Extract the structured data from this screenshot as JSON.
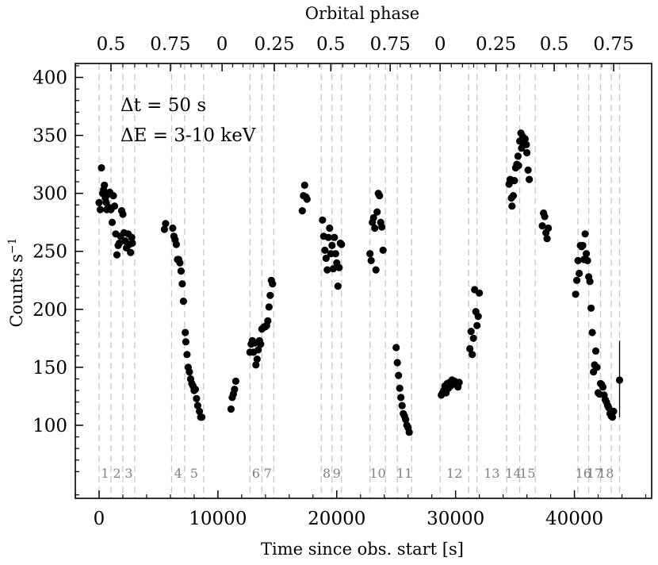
{
  "chart_data": {
    "type": "scatter",
    "title": "",
    "xlabel": "Time since obs. start [s]",
    "ylabel": "Counts s",
    "ylabel_sup": "−1",
    "top_axis_label": "Orbital phase",
    "xlim": [
      -2000,
      46500
    ],
    "ylim": [
      37,
      412
    ],
    "x_ticks": [
      0,
      10000,
      20000,
      30000,
      40000
    ],
    "x_tick_labels": [
      "0",
      "10000",
      "20000",
      "30000",
      "40000"
    ],
    "y_ticks": [
      100,
      150,
      200,
      250,
      300,
      350,
      400
    ],
    "y_tick_labels": [
      "100",
      "150",
      "200",
      "250",
      "300",
      "350",
      "400"
    ],
    "phase_ticks": [
      {
        "x": 1000,
        "label": "0.5"
      },
      {
        "x": 6000,
        "label": "0.75"
      },
      {
        "x": 10350,
        "label": "0"
      },
      {
        "x": 14750,
        "label": "0.25"
      },
      {
        "x": 19500,
        "label": "0.5"
      },
      {
        "x": 24500,
        "label": "0.75"
      },
      {
        "x": 28700,
        "label": "0"
      },
      {
        "x": 33400,
        "label": "0.25"
      },
      {
        "x": 38300,
        "label": "0.5"
      },
      {
        "x": 43300,
        "label": "0.75"
      }
    ],
    "segment_boundaries": [
      0,
      1000,
      2000,
      3000,
      6100,
      7200,
      8800,
      12700,
      13700,
      14700,
      18700,
      19600,
      20400,
      22800,
      24100,
      25100,
      26300,
      28700,
      31100,
      31800,
      34300,
      35400,
      36700,
      40300,
      41200,
      42200,
      43100,
      43800
    ],
    "segment_labels": [
      {
        "x": 500,
        "label": "1"
      },
      {
        "x": 1500,
        "label": "2"
      },
      {
        "x": 2500,
        "label": "3"
      },
      {
        "x": 6650,
        "label": "4"
      },
      {
        "x": 8000,
        "label": "5"
      },
      {
        "x": 13200,
        "label": "6"
      },
      {
        "x": 14200,
        "label": "7"
      },
      {
        "x": 19150,
        "label": "8"
      },
      {
        "x": 20000,
        "label": "9"
      },
      {
        "x": 23450,
        "label": "10"
      },
      {
        "x": 25700,
        "label": "11"
      },
      {
        "x": 29900,
        "label": "12"
      },
      {
        "x": 33050,
        "label": "13"
      },
      {
        "x": 34850,
        "label": "14"
      },
      {
        "x": 36050,
        "label": "15"
      },
      {
        "x": 40750,
        "label": "16"
      },
      {
        "x": 41700,
        "label": "17"
      },
      {
        "x": 42650,
        "label": "18"
      }
    ],
    "annotations": [
      "Δt = 50 s",
      "ΔE = 3-10 keV"
    ],
    "error_bar": {
      "x": 43800,
      "y": 139,
      "ylow": 107,
      "yhigh": 173
    },
    "points": [
      [
        0,
        292
      ],
      [
        100,
        286
      ],
      [
        200,
        322
      ],
      [
        300,
        300
      ],
      [
        380,
        303
      ],
      [
        450,
        307
      ],
      [
        520,
        296
      ],
      [
        600,
        292
      ],
      [
        650,
        286
      ],
      [
        720,
        299
      ],
      [
        800,
        288
      ],
      [
        900,
        301
      ],
      [
        1000,
        286
      ],
      [
        1100,
        275
      ],
      [
        1200,
        298
      ],
      [
        1300,
        289
      ],
      [
        1400,
        265
      ],
      [
        1500,
        247
      ],
      [
        1600,
        255
      ],
      [
        1700,
        257
      ],
      [
        1800,
        263
      ],
      [
        1900,
        285
      ],
      [
        2000,
        282
      ],
      [
        2100,
        266
      ],
      [
        2200,
        259
      ],
      [
        2300,
        253
      ],
      [
        2450,
        265
      ],
      [
        2550,
        256
      ],
      [
        2650,
        249
      ],
      [
        2750,
        262
      ],
      [
        2800,
        257
      ],
      [
        5500,
        269
      ],
      [
        5600,
        274
      ],
      [
        6200,
        270
      ],
      [
        6300,
        263
      ],
      [
        6400,
        260
      ],
      [
        6500,
        256
      ],
      [
        6600,
        243
      ],
      [
        6700,
        243
      ],
      [
        6800,
        240
      ],
      [
        6900,
        233
      ],
      [
        7000,
        222
      ],
      [
        7100,
        207
      ],
      [
        7250,
        180
      ],
      [
        7300,
        172
      ],
      [
        7400,
        161
      ],
      [
        7500,
        150
      ],
      [
        7600,
        146
      ],
      [
        7700,
        140
      ],
      [
        7800,
        136
      ],
      [
        7900,
        134
      ],
      [
        8000,
        130
      ],
      [
        8100,
        131
      ],
      [
        8200,
        123
      ],
      [
        8300,
        117
      ],
      [
        8450,
        112
      ],
      [
        8550,
        107
      ],
      [
        8650,
        107
      ],
      [
        11100,
        114
      ],
      [
        11200,
        124
      ],
      [
        11300,
        127
      ],
      [
        11400,
        131
      ],
      [
        11500,
        138
      ],
      [
        12700,
        163
      ],
      [
        12800,
        170
      ],
      [
        12900,
        173
      ],
      [
        13000,
        163
      ],
      [
        13100,
        171
      ],
      [
        13200,
        152
      ],
      [
        13300,
        157
      ],
      [
        13400,
        165
      ],
      [
        13500,
        173
      ],
      [
        13600,
        170
      ],
      [
        13700,
        183
      ],
      [
        13800,
        184
      ],
      [
        13900,
        185
      ],
      [
        14000,
        185
      ],
      [
        14100,
        186
      ],
      [
        14200,
        190
      ],
      [
        14300,
        202
      ],
      [
        14400,
        212
      ],
      [
        14500,
        225
      ],
      [
        14600,
        222
      ],
      [
        17100,
        285
      ],
      [
        17200,
        298
      ],
      [
        17300,
        307
      ],
      [
        17400,
        297
      ],
      [
        17500,
        295
      ],
      [
        18800,
        277
      ],
      [
        18900,
        263
      ],
      [
        19000,
        251
      ],
      [
        19100,
        244
      ],
      [
        19200,
        234
      ],
      [
        19300,
        262
      ],
      [
        19400,
        270
      ],
      [
        19500,
        248
      ],
      [
        19600,
        255
      ],
      [
        19700,
        235
      ],
      [
        19800,
        262
      ],
      [
        19900,
        248
      ],
      [
        20000,
        240
      ],
      [
        20100,
        220
      ],
      [
        20200,
        236
      ],
      [
        20300,
        257
      ],
      [
        20400,
        256
      ],
      [
        22800,
        248
      ],
      [
        22900,
        242
      ],
      [
        23000,
        275
      ],
      [
        23100,
        279
      ],
      [
        23200,
        270
      ],
      [
        23300,
        234
      ],
      [
        23400,
        284
      ],
      [
        23500,
        300
      ],
      [
        23600,
        298
      ],
      [
        23700,
        275
      ],
      [
        23800,
        271
      ],
      [
        23900,
        251
      ],
      [
        25000,
        167
      ],
      [
        25100,
        154
      ],
      [
        25200,
        143
      ],
      [
        25300,
        132
      ],
      [
        25400,
        124
      ],
      [
        25500,
        117
      ],
      [
        25600,
        110
      ],
      [
        25700,
        108
      ],
      [
        25800,
        105
      ],
      [
        25900,
        100
      ],
      [
        26000,
        98
      ],
      [
        26100,
        94
      ],
      [
        28800,
        126
      ],
      [
        28900,
        128
      ],
      [
        29000,
        130
      ],
      [
        29100,
        134
      ],
      [
        29200,
        128
      ],
      [
        29300,
        136
      ],
      [
        29400,
        132
      ],
      [
        29500,
        137
      ],
      [
        29600,
        134
      ],
      [
        29700,
        139
      ],
      [
        29800,
        136
      ],
      [
        29900,
        138
      ],
      [
        30000,
        137
      ],
      [
        30100,
        137
      ],
      [
        30200,
        133
      ],
      [
        30300,
        137
      ],
      [
        31200,
        166
      ],
      [
        31300,
        181
      ],
      [
        31400,
        161
      ],
      [
        31500,
        175
      ],
      [
        31600,
        217
      ],
      [
        31700,
        198
      ],
      [
        31800,
        186
      ],
      [
        31900,
        194
      ],
      [
        32000,
        214
      ],
      [
        34500,
        308
      ],
      [
        34600,
        312
      ],
      [
        34700,
        296
      ],
      [
        34750,
        289
      ],
      [
        34850,
        298
      ],
      [
        34950,
        311
      ],
      [
        35050,
        322
      ],
      [
        35150,
        325
      ],
      [
        35250,
        332
      ],
      [
        35300,
        324
      ],
      [
        35400,
        345
      ],
      [
        35500,
        352
      ],
      [
        35550,
        339
      ],
      [
        35650,
        349
      ],
      [
        35750,
        342
      ],
      [
        35850,
        347
      ],
      [
        35950,
        342
      ],
      [
        36000,
        335
      ],
      [
        36100,
        320
      ],
      [
        36200,
        312
      ],
      [
        37300,
        272
      ],
      [
        37400,
        283
      ],
      [
        37500,
        280
      ],
      [
        37600,
        266
      ],
      [
        37700,
        261
      ],
      [
        37800,
        270
      ],
      [
        40100,
        213
      ],
      [
        40200,
        225
      ],
      [
        40300,
        242
      ],
      [
        40400,
        231
      ],
      [
        40500,
        255
      ],
      [
        40600,
        254
      ],
      [
        40700,
        255
      ],
      [
        40800,
        243
      ],
      [
        40900,
        265
      ],
      [
        41000,
        248
      ],
      [
        41100,
        242
      ],
      [
        41200,
        228
      ],
      [
        41300,
        224
      ],
      [
        41400,
        201
      ],
      [
        41500,
        180
      ],
      [
        41600,
        146
      ],
      [
        41700,
        152
      ],
      [
        41800,
        164
      ],
      [
        41900,
        150
      ],
      [
        42000,
        128
      ],
      [
        42100,
        127
      ],
      [
        42200,
        136
      ],
      [
        42300,
        135
      ],
      [
        42400,
        133
      ],
      [
        42500,
        126
      ],
      [
        42600,
        122
      ],
      [
        42700,
        120
      ],
      [
        42800,
        117
      ],
      [
        42900,
        115
      ],
      [
        43000,
        110
      ],
      [
        43100,
        108
      ],
      [
        43200,
        107
      ],
      [
        43300,
        112
      ]
    ]
  }
}
